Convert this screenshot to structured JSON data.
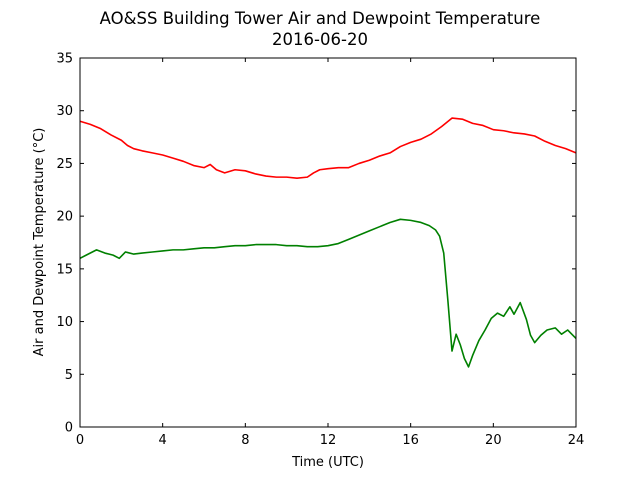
{
  "chart_data": {
    "type": "line",
    "title": "AO&SS Building Tower Air and Dewpoint Temperature",
    "subtitle": "2016-06-20",
    "xlabel": "Time (UTC)",
    "ylabel": "Air and Dewpoint Temperature (°C)",
    "xlim": [
      0,
      24
    ],
    "ylim": [
      0,
      35
    ],
    "xticks": [
      0,
      4,
      8,
      12,
      16,
      20,
      24
    ],
    "yticks": [
      0,
      5,
      10,
      15,
      20,
      25,
      30,
      35
    ],
    "grid": false,
    "legend": "none",
    "series": [
      {
        "color": "#ff0000",
        "x": [
          0,
          0.5,
          1,
          1.5,
          2,
          2.3,
          2.6,
          3,
          3.5,
          4,
          4.5,
          5,
          5.5,
          6,
          6.3,
          6.6,
          7,
          7.5,
          8,
          8.5,
          9,
          9.5,
          10,
          10.5,
          11,
          11.3,
          11.6,
          12,
          12.5,
          13,
          13.5,
          14,
          14.5,
          15,
          15.5,
          16,
          16.5,
          17,
          17.5,
          18,
          18.5,
          19,
          19.5,
          20,
          20.5,
          21,
          21.5,
          22,
          22.5,
          23,
          23.5,
          24
        ],
        "values": [
          29.0,
          28.7,
          28.3,
          27.7,
          27.2,
          26.7,
          26.4,
          26.2,
          26.0,
          25.8,
          25.5,
          25.2,
          24.8,
          24.6,
          24.9,
          24.4,
          24.1,
          24.4,
          24.3,
          24.0,
          23.8,
          23.7,
          23.7,
          23.6,
          23.7,
          24.1,
          24.4,
          24.5,
          24.6,
          24.6,
          25.0,
          25.3,
          25.7,
          26.0,
          26.6,
          27.0,
          27.3,
          27.8,
          28.5,
          29.3,
          29.2,
          28.8,
          28.6,
          28.2,
          28.1,
          27.9,
          27.8,
          27.6,
          27.1,
          26.7,
          26.4,
          26.0
        ]
      },
      {
        "color": "#008000",
        "x": [
          0,
          0.3,
          0.8,
          1.2,
          1.6,
          1.9,
          2.2,
          2.6,
          3,
          3.5,
          4,
          4.5,
          5,
          5.5,
          6,
          6.5,
          7,
          7.5,
          8,
          8.5,
          9,
          9.5,
          10,
          10.5,
          11,
          11.5,
          12,
          12.5,
          13,
          13.5,
          14,
          14.5,
          15,
          15.5,
          16,
          16.5,
          16.9,
          17.2,
          17.4,
          17.6,
          17.8,
          18.0,
          18.2,
          18.4,
          18.6,
          18.8,
          19.0,
          19.3,
          19.6,
          19.9,
          20.2,
          20.5,
          20.8,
          21.0,
          21.3,
          21.6,
          21.8,
          22.0,
          22.3,
          22.6,
          23.0,
          23.3,
          23.6,
          24
        ],
        "values": [
          16.0,
          16.3,
          16.8,
          16.5,
          16.3,
          16.0,
          16.6,
          16.4,
          16.5,
          16.6,
          16.7,
          16.8,
          16.8,
          16.9,
          17.0,
          17.0,
          17.1,
          17.2,
          17.2,
          17.3,
          17.3,
          17.3,
          17.2,
          17.2,
          17.1,
          17.1,
          17.2,
          17.4,
          17.8,
          18.2,
          18.6,
          19.0,
          19.4,
          19.7,
          19.6,
          19.4,
          19.1,
          18.7,
          18.1,
          16.5,
          12.0,
          7.2,
          8.8,
          7.8,
          6.5,
          5.7,
          6.8,
          8.2,
          9.2,
          10.3,
          10.8,
          10.5,
          11.4,
          10.7,
          11.8,
          10.2,
          8.7,
          8.0,
          8.7,
          9.2,
          9.4,
          8.8,
          9.2,
          8.4
        ]
      }
    ]
  }
}
